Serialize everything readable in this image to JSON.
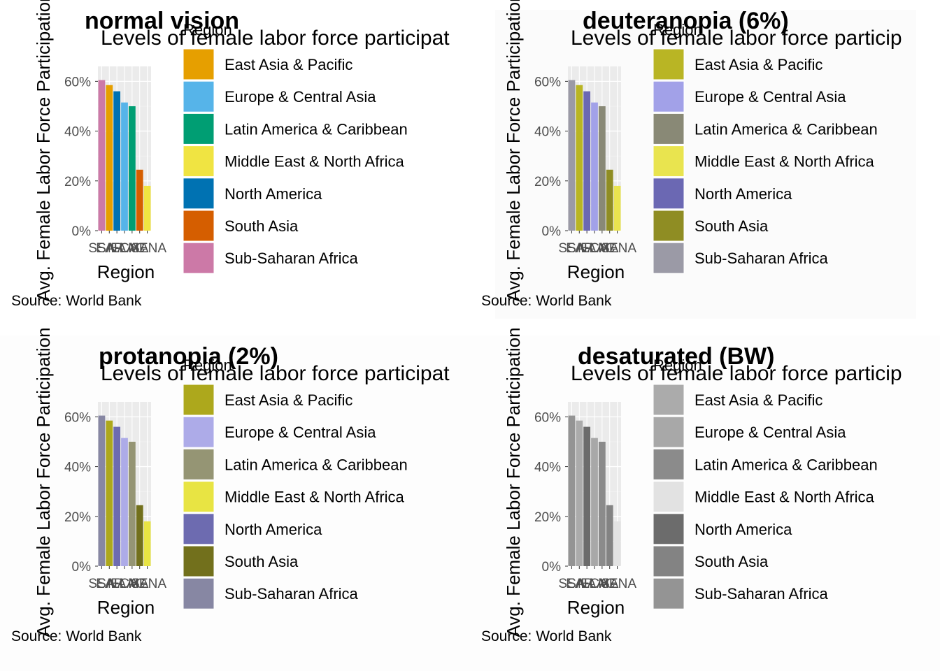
{
  "chart_data": [
    {
      "type": "bar",
      "panel_title": "normal vision",
      "title": "Levels of female labor force participat",
      "xlabel": "Region",
      "ylabel": "Avg. Female Labor Force Participation",
      "caption": "Source: World Bank",
      "legend_title": "Region",
      "legend_position": "right",
      "grid": true,
      "ylim": [
        0,
        0.66
      ],
      "yticks": [
        0,
        0.2,
        0.4,
        0.6
      ],
      "ytick_labels": [
        "0%",
        "20%",
        "40%",
        "60%"
      ],
      "categories": [
        "SSA",
        "EAP",
        "NA",
        "ECA",
        "LAC",
        "SA",
        "MENA"
      ],
      "category_tick_labels": [
        "SSA",
        "EAP",
        "NA",
        "ECA",
        "LAC",
        "SA",
        "MENA"
      ],
      "values": [
        0.605,
        0.585,
        0.56,
        0.515,
        0.5,
        0.245,
        0.18
      ],
      "legend": [
        {
          "label": "East Asia & Pacific",
          "color": "#E69F00"
        },
        {
          "label": "Europe & Central Asia",
          "color": "#56B4E9"
        },
        {
          "label": "Latin America & Caribbean",
          "color": "#009E73"
        },
        {
          "label": "Middle East & North Africa",
          "color": "#F0E442"
        },
        {
          "label": "North America",
          "color": "#0072B2"
        },
        {
          "label": "South Asia",
          "color": "#D55E00"
        },
        {
          "label": "Sub-Saharan Africa",
          "color": "#CC79A7"
        }
      ],
      "bar_colors": [
        "#CC79A7",
        "#E69F00",
        "#0072B2",
        "#56B4E9",
        "#009E73",
        "#D55E00",
        "#F0E442"
      ]
    },
    {
      "type": "bar",
      "panel_title": "deuteranopia (6%)",
      "title": "Levels of female labor force particip",
      "xlabel": "Region",
      "ylabel": "Avg. Female Labor Force Participation",
      "caption": "Source: World Bank",
      "legend_title": "Region",
      "legend_position": "right",
      "grid": true,
      "ylim": [
        0,
        0.66
      ],
      "yticks": [
        0,
        0.2,
        0.4,
        0.6
      ],
      "ytick_labels": [
        "0%",
        "20%",
        "40%",
        "60%"
      ],
      "categories": [
        "SSA",
        "EAP",
        "NA",
        "ECA",
        "LAC",
        "SA",
        "MENA"
      ],
      "category_tick_labels": [
        "SSA",
        "EAP",
        "NA",
        "ECA",
        "LAC",
        "SA",
        "MENA"
      ],
      "values": [
        0.605,
        0.585,
        0.56,
        0.515,
        0.5,
        0.245,
        0.18
      ],
      "legend": [
        {
          "label": "East Asia & Pacific",
          "color": "#B9B524"
        },
        {
          "label": "Europe & Central Asia",
          "color": "#A2A1E8"
        },
        {
          "label": "Latin America & Caribbean",
          "color": "#898976"
        },
        {
          "label": "Middle East & North Africa",
          "color": "#E9E44F"
        },
        {
          "label": "North America",
          "color": "#6B68B3"
        },
        {
          "label": "South Asia",
          "color": "#8F8D23"
        },
        {
          "label": "Sub-Saharan Africa",
          "color": "#9B9AA6"
        }
      ],
      "bar_colors": [
        "#9B9AA6",
        "#B9B524",
        "#6B68B3",
        "#A2A1E8",
        "#898976",
        "#8F8D23",
        "#E9E44F"
      ]
    },
    {
      "type": "bar",
      "panel_title": "protanopia (2%)",
      "title": "Levels of female labor force participat",
      "xlabel": "Region",
      "ylabel": "Avg. Female Labor Force Participation",
      "caption": "Source: World Bank",
      "legend_title": "Region",
      "legend_position": "right",
      "grid": true,
      "ylim": [
        0,
        0.66
      ],
      "yticks": [
        0,
        0.2,
        0.4,
        0.6
      ],
      "ytick_labels": [
        "0%",
        "20%",
        "40%",
        "60%"
      ],
      "categories": [
        "SSA",
        "EAP",
        "NA",
        "ECA",
        "LAC",
        "SA",
        "MENA"
      ],
      "category_tick_labels": [
        "SSA",
        "EAP",
        "NA",
        "ECA",
        "LAC",
        "SA",
        "MENA"
      ],
      "values": [
        0.605,
        0.585,
        0.56,
        0.515,
        0.5,
        0.245,
        0.18
      ],
      "legend": [
        {
          "label": "East Asia & Pacific",
          "color": "#ADA81C"
        },
        {
          "label": "Europe & Central Asia",
          "color": "#ADABE8"
        },
        {
          "label": "Latin America & Caribbean",
          "color": "#959574"
        },
        {
          "label": "Middle East & North Africa",
          "color": "#E8E443"
        },
        {
          "label": "North America",
          "color": "#6D6BB0"
        },
        {
          "label": "South Asia",
          "color": "#72701C"
        },
        {
          "label": "Sub-Saharan Africa",
          "color": "#8787A3"
        }
      ],
      "bar_colors": [
        "#8787A3",
        "#ADA81C",
        "#6D6BB0",
        "#ADABE8",
        "#959574",
        "#72701C",
        "#E8E443"
      ]
    },
    {
      "type": "bar",
      "panel_title": "desaturated (BW)",
      "title": "Levels of female labor force particip",
      "xlabel": "Region",
      "ylabel": "Avg. Female Labor Force Participation",
      "caption": "Source: World Bank",
      "legend_title": "Region",
      "legend_position": "right",
      "grid": true,
      "ylim": [
        0,
        0.66
      ],
      "yticks": [
        0,
        0.2,
        0.4,
        0.6
      ],
      "ytick_labels": [
        "0%",
        "20%",
        "40%",
        "60%"
      ],
      "categories": [
        "SSA",
        "EAP",
        "NA",
        "ECA",
        "LAC",
        "SA",
        "MENA"
      ],
      "category_tick_labels": [
        "SSA",
        "EAP",
        "NA",
        "ECA",
        "LAC",
        "SA",
        "MENA"
      ],
      "values": [
        0.605,
        0.585,
        0.56,
        0.515,
        0.5,
        0.245,
        0.18
      ],
      "legend": [
        {
          "label": "East Asia & Pacific",
          "color": "#ABABAB"
        },
        {
          "label": "Europe & Central Asia",
          "color": "#A8A8A8"
        },
        {
          "label": "Latin America & Caribbean",
          "color": "#8B8B8B"
        },
        {
          "label": "Middle East & North Africa",
          "color": "#E2E2E2"
        },
        {
          "label": "North America",
          "color": "#6C6C6C"
        },
        {
          "label": "South Asia",
          "color": "#838383"
        },
        {
          "label": "Sub-Saharan Africa",
          "color": "#949494"
        }
      ],
      "bar_colors": [
        "#949494",
        "#ABABAB",
        "#6C6C6C",
        "#A8A8A8",
        "#8B8B8B",
        "#838383",
        "#E2E2E2"
      ]
    }
  ]
}
